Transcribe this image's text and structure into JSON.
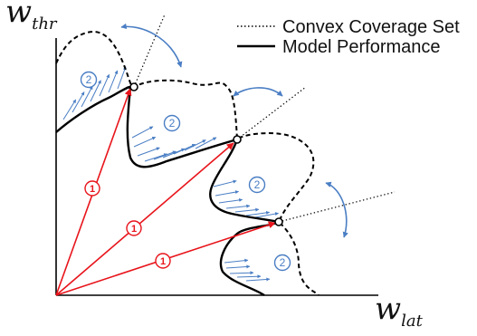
{
  "axes": {
    "y_label_main": "w",
    "y_label_sub": "thr",
    "x_label_main": "w",
    "x_label_sub": "lat"
  },
  "legend": {
    "items": [
      {
        "label": "Convex Coverage Set",
        "style": "dotted"
      },
      {
        "label": "Model Performance",
        "style": "solid"
      }
    ]
  },
  "step_badges": {
    "step1": "1",
    "step2": "2"
  },
  "colors": {
    "axis": "#000000",
    "model_curve": "#000000",
    "coverage_curve": "#000000",
    "step1_arrow": "#e8141b",
    "step2_arrow": "#4a7ec4"
  },
  "icons": {
    "rotate_arrow": "curved-double-arrow-icon",
    "point_marker": "open-circle-icon"
  }
}
